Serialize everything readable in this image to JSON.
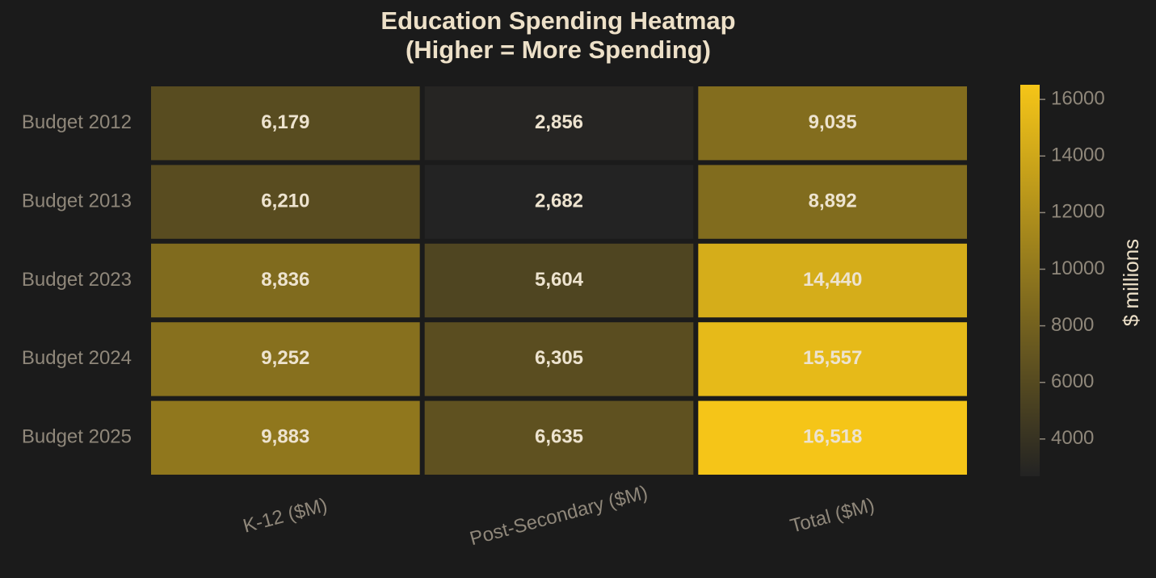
{
  "chart_data": {
    "type": "heatmap",
    "title": "Education Spending Heatmap",
    "subtitle": "(Higher = More Spending)",
    "rows": [
      "Budget 2012",
      "Budget 2013",
      "Budget 2023",
      "Budget 2024",
      "Budget 2025"
    ],
    "columns": [
      "K-12 ($M)",
      "Post-Secondary ($M)",
      "Total ($M)"
    ],
    "values": [
      [
        6179,
        2856,
        9035
      ],
      [
        6210,
        2682,
        8892
      ],
      [
        8836,
        5604,
        14440
      ],
      [
        9252,
        6305,
        15557
      ],
      [
        9883,
        6635,
        16518
      ]
    ],
    "value_labels": [
      [
        "6,179",
        "2,856",
        "9,035"
      ],
      [
        "6,210",
        "2,682",
        "8,892"
      ],
      [
        "8,836",
        "5,604",
        "14,440"
      ],
      [
        "9,252",
        "6,305",
        "15,557"
      ],
      [
        "9,883",
        "6,635",
        "16,518"
      ]
    ],
    "colors": [
      "#232323",
      "#f5c518"
    ],
    "colorbar_label": "$ millions",
    "clim": [
      2682,
      16518
    ],
    "cticks": [
      4000,
      6000,
      8000,
      10000,
      12000,
      14000,
      16000
    ]
  }
}
